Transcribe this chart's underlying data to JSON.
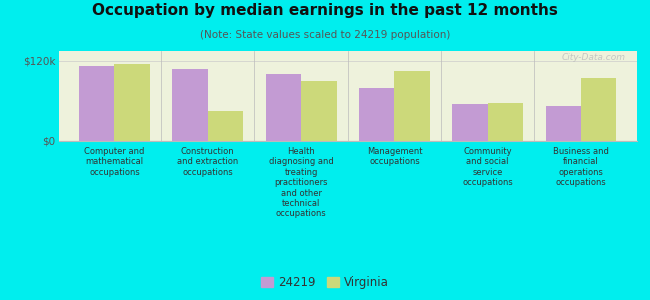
{
  "title": "Occupation by median earnings in the past 12 months",
  "subtitle": "(Note: State values scaled to 24219 population)",
  "categories": [
    "Computer and\nmathematical\noccupations",
    "Construction\nand extraction\noccupations",
    "Health\ndiagnosing and\ntreating\npractitioners\nand other\ntechnical\noccupations",
    "Management\noccupations",
    "Community\nand social\nservice\noccupations",
    "Business and\nfinancial\noperations\noccupations"
  ],
  "values_24219": [
    113000,
    108000,
    100000,
    80000,
    55000,
    52000
  ],
  "values_virginia": [
    115000,
    45000,
    90000,
    105000,
    57000,
    95000
  ],
  "color_24219": "#c39bd3",
  "color_virginia": "#ccd97a",
  "ylim": [
    0,
    135000
  ],
  "yticks": [
    0,
    120000
  ],
  "ytick_labels": [
    "$0",
    "$120k"
  ],
  "background_color": "#eef2dc",
  "outer_background": "#00eeee",
  "legend_labels": [
    "24219",
    "Virginia"
  ],
  "watermark": "City-Data.com",
  "bar_width": 0.38
}
